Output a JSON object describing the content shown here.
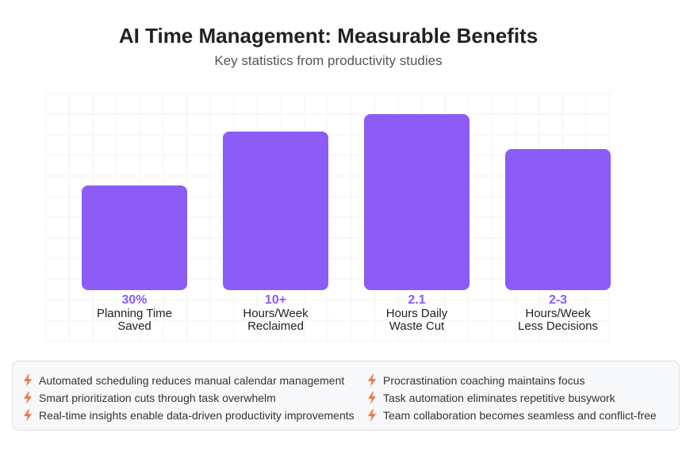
{
  "header": {
    "title": "AI Time Management: Measurable Benefits",
    "subtitle": "Key statistics from productivity studies"
  },
  "chart_data": {
    "type": "bar",
    "grid": true,
    "categories": [
      [
        "Planning Time",
        "Saved"
      ],
      [
        "Hours/Week",
        "Reclaimed"
      ],
      [
        "Hours Daily",
        "Waste Cut"
      ],
      [
        "Hours/Week",
        "Less Decisions"
      ]
    ],
    "data_labels": [
      "30%",
      "10+",
      "2.1",
      "2-3"
    ],
    "values": [
      66,
      100,
      111,
      89
    ],
    "ylim": [
      0,
      120
    ],
    "bar_color": "#8b5cf6",
    "label_color": "#8b5cf6"
  },
  "benefits": {
    "icon": "lightning-bolt-icon",
    "icon_color": "#f07a4a",
    "left": [
      "Automated scheduling reduces manual calendar management",
      "Smart prioritization cuts through task overwhelm",
      "Real-time insights enable data-driven productivity improvements"
    ],
    "right": [
      "Procrastination coaching maintains focus",
      "Task automation eliminates repetitive busywork",
      "Team collaboration becomes seamless and conflict-free"
    ]
  }
}
